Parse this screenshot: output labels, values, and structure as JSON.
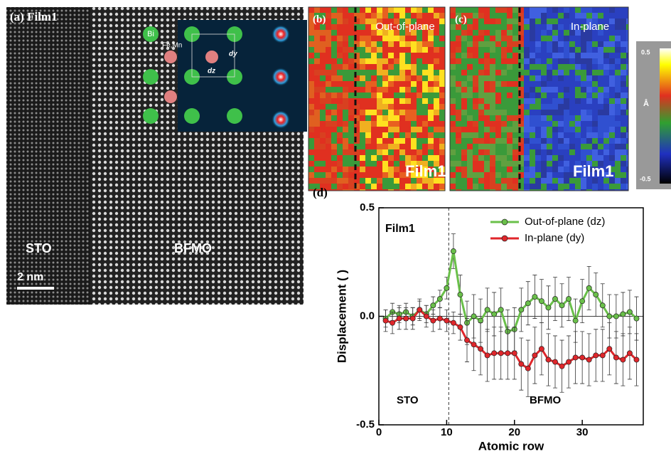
{
  "panel_a": {
    "label": "(a) Film1",
    "atoms": [
      "Bi",
      "Fe,Mn"
    ],
    "dy": "dy",
    "dz": "dz",
    "regions": [
      "STO",
      "BFMO"
    ],
    "scale": "2 nm"
  },
  "panel_b": {
    "label": "(b)",
    "title": "Out-of-plane",
    "film": "Film1"
  },
  "panel_c": {
    "label": "(c)",
    "title": "In-plane",
    "film": "Film1"
  },
  "colorbar": {
    "max": "0.5",
    "unit": "Å",
    "min": "-0.5"
  },
  "panel_d": {
    "label": "(d)"
  },
  "chart_data": {
    "type": "line",
    "annotation": "Film1",
    "region_labels": [
      "STO",
      "BFMO"
    ],
    "xlabel": "Atomic row",
    "ylabel": "Displacement ( )",
    "x": [
      1,
      2,
      3,
      4,
      5,
      6,
      7,
      8,
      9,
      10,
      11,
      12,
      13,
      14,
      15,
      16,
      17,
      18,
      19,
      20,
      21,
      22,
      23,
      24,
      25,
      26,
      27,
      28,
      29,
      30,
      31,
      32,
      33,
      34,
      35,
      36,
      37,
      38
    ],
    "series": [
      {
        "name": "Out-of-plane (dz)",
        "color": "#6ac04a",
        "values": [
          -0.01,
          0.02,
          0.01,
          0.02,
          0.0,
          0.03,
          0.01,
          0.05,
          0.08,
          0.13,
          0.3,
          0.1,
          -0.03,
          0.0,
          -0.02,
          0.03,
          0.01,
          0.03,
          -0.07,
          -0.06,
          0.03,
          0.06,
          0.09,
          0.07,
          0.04,
          0.08,
          0.05,
          0.08,
          -0.02,
          0.07,
          0.13,
          0.1,
          0.05,
          0.0,
          0.0,
          0.01,
          0.02,
          -0.01
        ],
        "errors": [
          0.04,
          0.04,
          0.04,
          0.04,
          0.04,
          0.04,
          0.04,
          0.04,
          0.04,
          0.05,
          0.08,
          0.09,
          0.1,
          0.1,
          0.1,
          0.1,
          0.1,
          0.1,
          0.1,
          0.1,
          0.1,
          0.1,
          0.1,
          0.1,
          0.1,
          0.1,
          0.1,
          0.1,
          0.1,
          0.1,
          0.1,
          0.1,
          0.1,
          0.1,
          0.1,
          0.1,
          0.1,
          0.1
        ]
      },
      {
        "name": "In-plane (dy)",
        "color": "#e0262b",
        "values": [
          -0.02,
          -0.03,
          -0.01,
          -0.01,
          -0.01,
          0.03,
          0.0,
          -0.02,
          -0.01,
          -0.02,
          -0.03,
          -0.05,
          -0.11,
          -0.13,
          -0.15,
          -0.18,
          -0.17,
          -0.17,
          -0.17,
          -0.17,
          -0.22,
          -0.24,
          -0.18,
          -0.15,
          -0.2,
          -0.21,
          -0.23,
          -0.21,
          -0.19,
          -0.19,
          -0.2,
          -0.18,
          -0.18,
          -0.15,
          -0.19,
          -0.2,
          -0.17,
          -0.2
        ],
        "errors": [
          0.05,
          0.05,
          0.05,
          0.05,
          0.05,
          0.05,
          0.05,
          0.05,
          0.05,
          0.05,
          0.05,
          0.06,
          0.1,
          0.12,
          0.12,
          0.12,
          0.12,
          0.12,
          0.12,
          0.12,
          0.12,
          0.13,
          0.13,
          0.12,
          0.12,
          0.12,
          0.12,
          0.12,
          0.12,
          0.12,
          0.12,
          0.12,
          0.12,
          0.12,
          0.12,
          0.12,
          0.12,
          0.12
        ]
      }
    ],
    "xlim": [
      0,
      39
    ],
    "ylim": [
      -0.5,
      0.5
    ],
    "xticks": [
      0,
      10,
      20,
      30
    ],
    "yticks": [
      0.5,
      {
        "value": 0,
        "label": "0.0"
      },
      -0.5
    ],
    "divider_x": 10.3,
    "zero_line": true,
    "legend": "upper right"
  }
}
